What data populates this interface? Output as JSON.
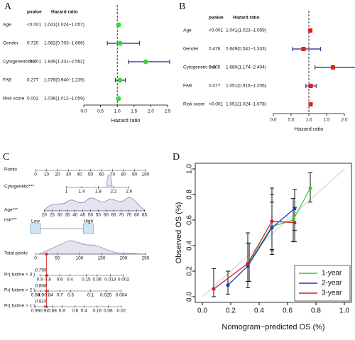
{
  "chart_data": [
    {
      "type": "forest",
      "panel_label": "A",
      "pvalue_header": "pvalue",
      "hr_header": "Hazard ratio",
      "xlabel": "Hazard ratio",
      "categories": [
        "Age",
        "Gender",
        "Cytogenetic risk",
        "FAB",
        "Risk score"
      ],
      "pvalues": [
        "<0.001",
        "0.720",
        "<0.001",
        "0.277",
        "0.002"
      ],
      "hr": [
        1.041,
        1.082,
        1.846,
        1.079,
        1.036
      ],
      "lower": [
        1.024,
        0.703,
        1.331,
        0.94,
        1.012
      ],
      "upper": [
        1.057,
        1.666,
        2.562,
        1.239,
        1.059
      ],
      "hr_labels": [
        "1.041(1.024−1.057)",
        "1.082(0.703−1.666)",
        "1.846(1.331−2.562)",
        "1.079(0.940−1.239)",
        "1.036(1.012−1.059)"
      ],
      "marker": "circle",
      "color": "#33dd33",
      "reference": 1,
      "xlim": [
        0,
        2.5
      ],
      "xticks": [
        {
          "value": 0,
          "label": "0.0"
        },
        0.5,
        {
          "value": 1,
          "label": "1.0"
        },
        1.5,
        {
          "value": 2,
          "label": "2.0"
        },
        2.5
      ]
    },
    {
      "type": "forest",
      "panel_label": "B",
      "pvalue_header": "pvalue",
      "hr_header": "Hazard ratio",
      "xlabel": "Hazard ratio",
      "categories": [
        "Age",
        "Gender",
        "Cytogenetic risk",
        "FAB",
        "Risk score"
      ],
      "pvalues": [
        "<0.001",
        "0.476",
        "0.005",
        "0.477",
        "<0.001"
      ],
      "hr": [
        1.041,
        0.849,
        1.68,
        1.051,
        1.051
      ],
      "lower": [
        1.023,
        0.541,
        1.174,
        0.916,
        1.024
      ],
      "upper": [
        1.059,
        1.333,
        2.404,
        1.206,
        1.078
      ],
      "hr_labels": [
        "1.041(1.023−1.059)",
        "0.849(0.541−1.333)",
        "1.680(1.174−2.404)",
        "1.051(0.916−1.206)",
        "1.051(1.024−1.078)"
      ],
      "marker": "square",
      "color": "#dd2222",
      "reference": 1,
      "xlim": [
        0,
        2
      ],
      "xticks": [
        {
          "value": 0,
          "label": "0.0"
        },
        0.5,
        {
          "value": 1,
          "label": "1.0"
        },
        1.5,
        {
          "value": 2,
          "label": "2.0"
        }
      ]
    },
    {
      "type": "nomogram",
      "panel_label": "C",
      "points_axis": {
        "label": "Points",
        "xlim": [
          0,
          100
        ],
        "ticks": [
          0,
          10,
          20,
          30,
          40,
          50,
          60,
          70,
          80,
          90,
          100
        ]
      },
      "variables": [
        {
          "label": "Cytogenetic***",
          "ticks": [
            1,
            1.4,
            1.8,
            2.2,
            2.6
          ],
          "points": [
            28,
            42,
            57,
            71,
            85
          ]
        },
        {
          "label": "Age***",
          "ticks": [
            20,
            25,
            30,
            35,
            40,
            45,
            50,
            55,
            60,
            65,
            70,
            75,
            80,
            85
          ],
          "points": [
            8,
            15,
            22,
            29,
            36,
            43,
            50,
            57,
            64,
            71,
            78,
            85,
            92,
            99
          ]
        },
        {
          "label": "risk***",
          "categories": [
            "Low",
            "High"
          ],
          "points": [
            0,
            48
          ]
        }
      ],
      "total_axis": {
        "label": "Total points",
        "xlim": [
          0,
          250
        ],
        "ticks": [
          0,
          50,
          100,
          150,
          200,
          250
        ]
      },
      "probability_axes": [
        {
          "label": "Pr( futime > 3 )",
          "ticks": [
            0.9,
            0.8,
            0.6,
            0.4,
            0.15,
            0.06,
            0.013,
            0.002
          ],
          "total_points": [
            10,
            28,
            55,
            78,
            115,
            140,
            170,
            200
          ]
        },
        {
          "label": "Pr( futime > 2 )",
          "ticks": [
            0.94,
            0.9,
            0.84,
            0.7,
            0.5,
            0.1,
            0.025,
            0.004
          ],
          "total_points": [
            0,
            12,
            30,
            55,
            80,
            125,
            160,
            195
          ]
        },
        {
          "label": "Pr( futime > 1 )",
          "ticks": [
            0.96,
            0.92,
            0.88,
            0.8,
            0.6,
            0.4,
            0.16,
            0.06,
            0.02
          ],
          "total_points": [
            0,
            20,
            38,
            60,
            90,
            110,
            140,
            165,
            195
          ]
        }
      ],
      "patient": {
        "total_points": 25,
        "probabilities": [
          0.795,
          0.868,
          0.915
        ]
      }
    },
    {
      "type": "line",
      "panel_label": "D",
      "xlabel": "Nomogram−predicted OS (%)",
      "ylabel": "Observed OS (%)",
      "xlim": [
        0,
        1
      ],
      "ylim": [
        0,
        1
      ],
      "xticks": [
        {
          "value": 0,
          "label": "0.0"
        },
        0.2,
        0.4,
        0.6,
        0.8,
        {
          "value": 1,
          "label": "1.0"
        }
      ],
      "yticks": [
        {
          "value": 0,
          "label": "0.0"
        },
        0.2,
        0.4,
        0.6,
        0.8,
        {
          "value": 1,
          "label": "1.0"
        }
      ],
      "legend": "lower right",
      "series": [
        {
          "name": "1-year",
          "color": "#33cc33",
          "x": [
            0.33,
            0.49,
            0.64,
            0.76
          ],
          "y": [
            0.27,
            0.55,
            0.6,
            0.85
          ],
          "lower": [
            0.12,
            0.36,
            0.43,
            0.74
          ],
          "upper": [
            0.42,
            0.74,
            0.77,
            0.97
          ]
        },
        {
          "name": "2-year",
          "color": "#2233bb",
          "x": [
            0.18,
            0.32,
            0.49,
            0.65
          ],
          "y": [
            0.09,
            0.24,
            0.54,
            0.69
          ],
          "lower": [
            0.02,
            0.07,
            0.33,
            0.52
          ],
          "upper": [
            0.2,
            0.42,
            0.8,
            0.84
          ]
        },
        {
          "name": "3-year",
          "color": "#cc2222",
          "x": [
            0.08,
            0.32,
            0.49,
            0.65
          ],
          "y": [
            0.06,
            0.26,
            0.59,
            0.58
          ],
          "lower": [
            0.0,
            0.12,
            0.37,
            0.43
          ],
          "upper": [
            0.22,
            0.5,
            0.85,
            0.7
          ]
        }
      ]
    }
  ]
}
